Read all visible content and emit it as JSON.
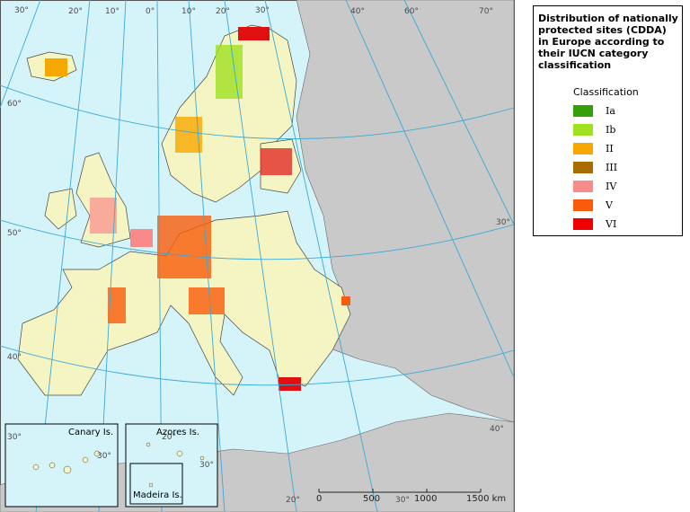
{
  "legend": {
    "title": "Distribution of nationally protected sites (CDDA) in Europe according to their IUCN category classification",
    "heading": "Classification",
    "items": [
      {
        "label": "Ia",
        "color": "#33a00a"
      },
      {
        "label": "Ib",
        "color": "#9fe01f"
      },
      {
        "label": "II",
        "color": "#f7a800"
      },
      {
        "label": "III",
        "color": "#a86c00"
      },
      {
        "label": "IV",
        "color": "#f98a8a"
      },
      {
        "label": "V",
        "color": "#f95b0a"
      },
      {
        "label": "VI",
        "color": "#f00000"
      }
    ]
  },
  "graticule_labels": [
    "30°",
    "20°",
    "10°",
    "0°",
    "10°",
    "20°",
    "30°",
    "40°",
    "60°",
    "70°",
    "60°",
    "50°",
    "40°",
    "20°",
    "30°",
    "30°",
    "30°",
    "20°",
    "30°",
    "40°",
    "30°"
  ],
  "insets": [
    "Canary Is.",
    "Azores Is.",
    "Madeira Is."
  ],
  "scale_labels": [
    "0",
    "500",
    "1000",
    "1500 km"
  ]
}
